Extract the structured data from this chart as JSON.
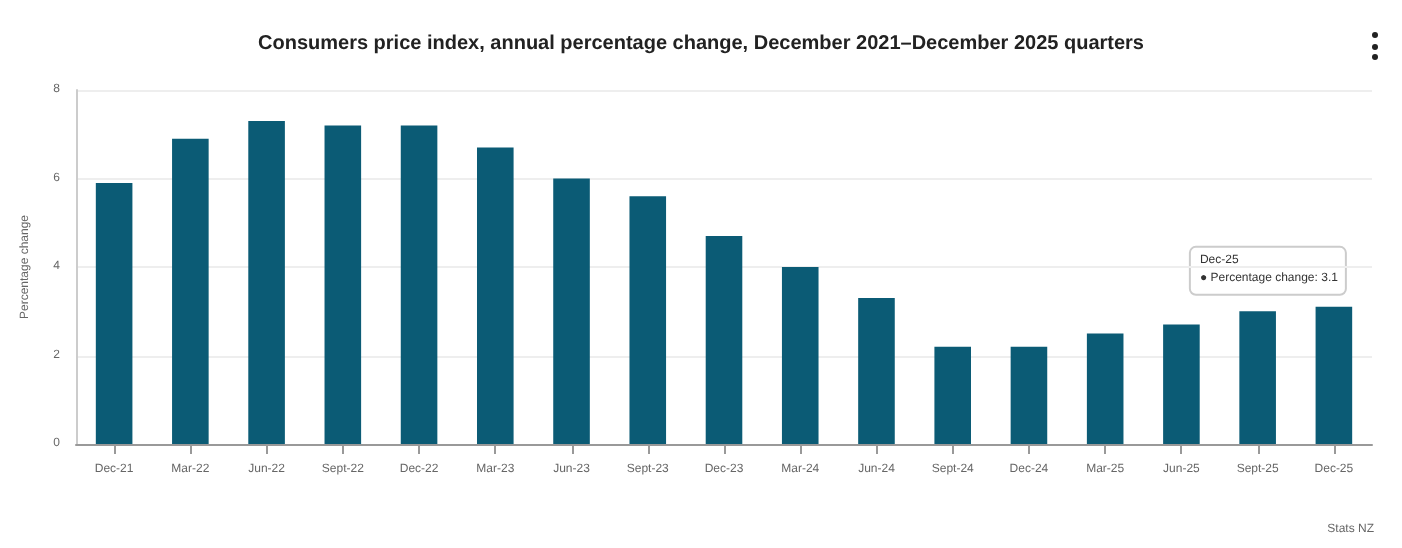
{
  "chart_data": {
    "type": "bar",
    "title": "Consumers price index, annual percentage change, December 2021–December 2025 quarters",
    "ylabel": "Percentage change",
    "categories": [
      "Dec-21",
      "Mar-22",
      "Jun-22",
      "Sept-22",
      "Dec-22",
      "Mar-23",
      "Jun-23",
      "Sept-23",
      "Dec-23",
      "Mar-24",
      "Jun-24",
      "Sept-24",
      "Dec-24",
      "Mar-25",
      "Jun-25",
      "Sept-25",
      "Dec-25"
    ],
    "values": [
      5.9,
      6.9,
      7.3,
      7.2,
      7.2,
      6.7,
      6.0,
      5.6,
      4.7,
      4.0,
      3.3,
      2.2,
      2.2,
      2.5,
      2.7,
      3.0,
      3.1
    ],
    "color": "#0b5b75",
    "ylim": [
      0,
      8
    ],
    "yticks": [
      0,
      2,
      4,
      6,
      8
    ],
    "grid": "y",
    "annotations": [
      "Dec-25",
      "● Percentage change: 3.1",
      "Stats NZ"
    ]
  }
}
